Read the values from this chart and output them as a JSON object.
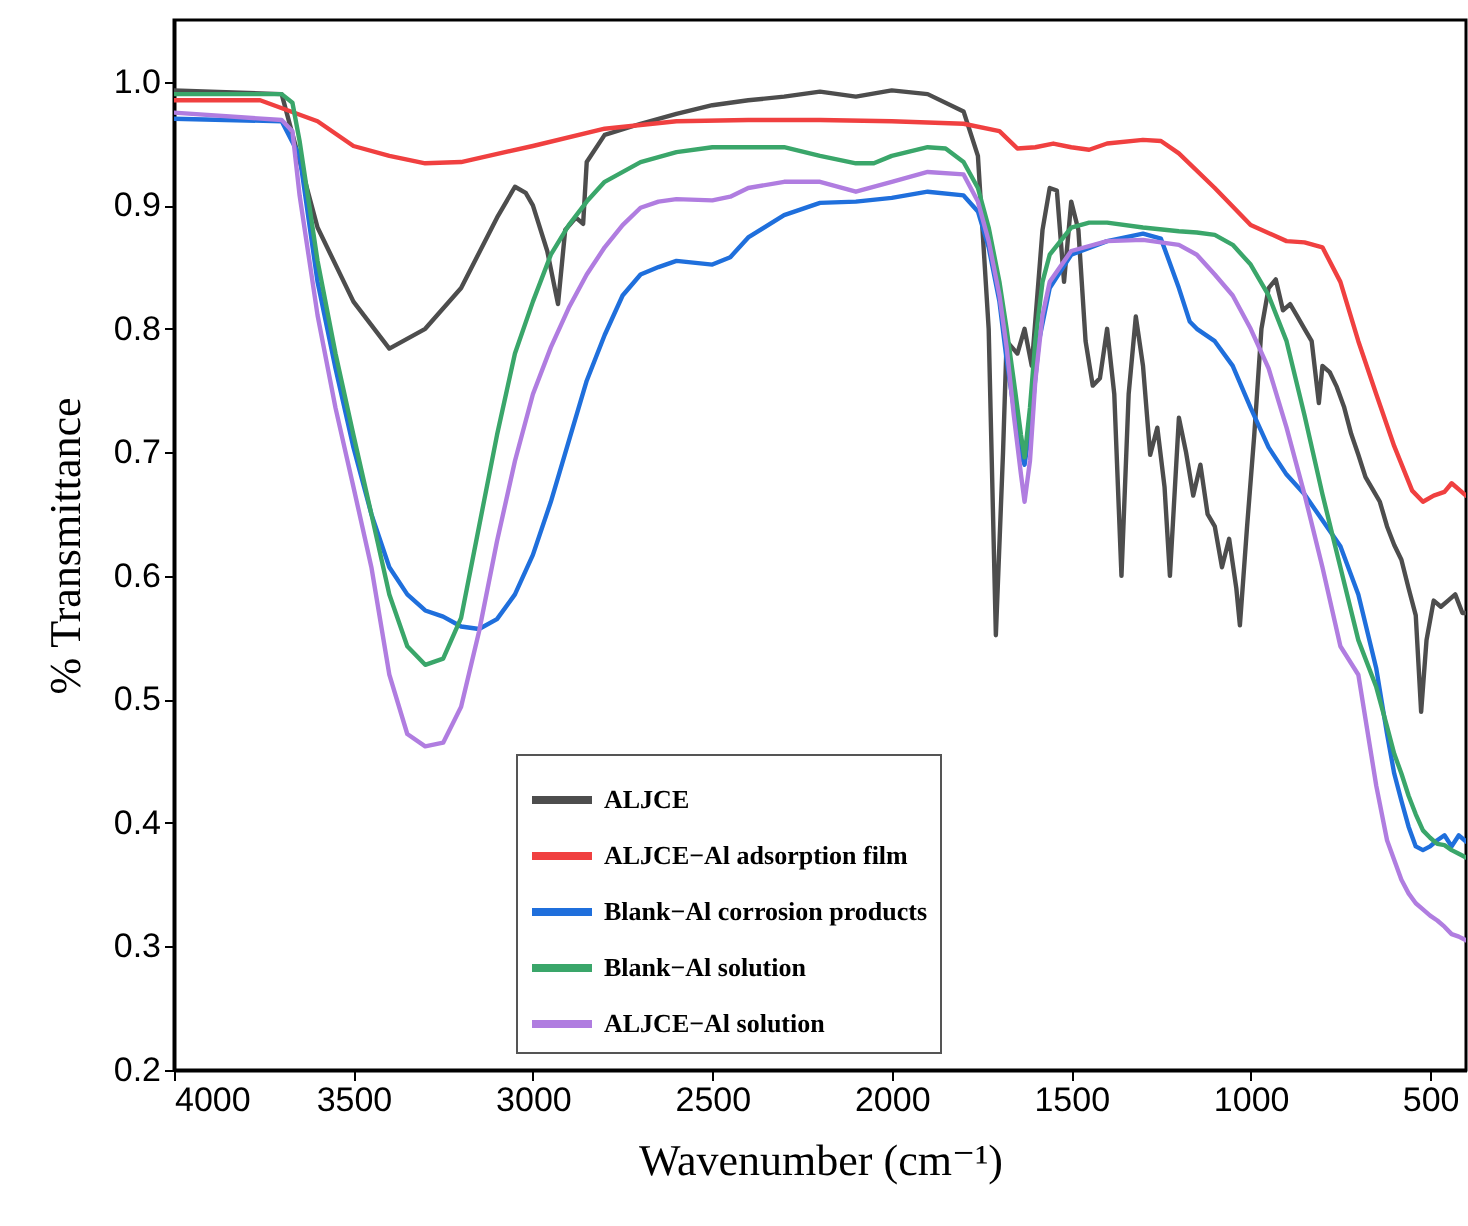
{
  "chart_data": {
    "type": "line",
    "xlabel": "Wavenumber (cm⁻¹)",
    "ylabel": "% Transmittance",
    "xlim": [
      4000,
      400
    ],
    "xticks": [
      4000,
      3500,
      3000,
      2500,
      2000,
      1500,
      1000,
      500
    ],
    "ylim": [
      0.2,
      1.05
    ],
    "yticks": [
      {
        "value": 0.2,
        "label": "0.2"
      },
      {
        "value": 0.3,
        "label": "0.3"
      },
      {
        "value": 0.4,
        "label": "0.4"
      },
      {
        "value": 0.5,
        "label": "0.5"
      },
      {
        "value": 0.6,
        "label": "0.6"
      },
      {
        "value": 0.7,
        "label": "0.7"
      },
      {
        "value": 0.8,
        "label": "0.8"
      },
      {
        "value": 0.9,
        "label": "0.9"
      },
      {
        "value": 1,
        "label": "1.0"
      }
    ],
    "grid": false,
    "legend": "bottom",
    "line_style": "solid",
    "series": [
      {
        "name": "ALJCE",
        "color": "#4d4d4d",
        "x": [
          4000,
          3700,
          3600,
          3500,
          3400,
          3300,
          3200,
          3100,
          3050,
          3020,
          3000,
          2960,
          2930,
          2910,
          2880,
          2860,
          2850,
          2800,
          2700,
          2600,
          2500,
          2400,
          2300,
          2200,
          2100,
          2000,
          1900,
          1800,
          1760,
          1730,
          1710,
          1690,
          1680,
          1650,
          1630,
          1610,
          1580,
          1560,
          1540,
          1520,
          1500,
          1480,
          1460,
          1440,
          1420,
          1400,
          1380,
          1360,
          1340,
          1320,
          1300,
          1280,
          1260,
          1240,
          1225,
          1200,
          1180,
          1160,
          1140,
          1120,
          1100,
          1080,
          1060,
          1040,
          1030,
          1010,
          990,
          970,
          950,
          930,
          910,
          890,
          870,
          850,
          830,
          810,
          800,
          780,
          760,
          740,
          720,
          700,
          680,
          660,
          640,
          620,
          600,
          580,
          560,
          540,
          525,
          510,
          490,
          470,
          450,
          430,
          410,
          400
        ],
        "values": [
          0.993,
          0.99,
          0.882,
          0.822,
          0.784,
          0.8,
          0.833,
          0.89,
          0.915,
          0.91,
          0.9,
          0.863,
          0.82,
          0.88,
          0.89,
          0.885,
          0.935,
          0.957,
          0.966,
          0.974,
          0.981,
          0.985,
          0.988,
          0.992,
          0.988,
          0.993,
          0.99,
          0.976,
          0.94,
          0.8,
          0.552,
          0.7,
          0.79,
          0.78,
          0.8,
          0.77,
          0.88,
          0.914,
          0.912,
          0.838,
          0.903,
          0.88,
          0.79,
          0.754,
          0.76,
          0.8,
          0.747,
          0.6,
          0.747,
          0.81,
          0.77,
          0.698,
          0.72,
          0.672,
          0.6,
          0.728,
          0.7,
          0.665,
          0.69,
          0.65,
          0.64,
          0.607,
          0.63,
          0.59,
          0.56,
          0.64,
          0.714,
          0.8,
          0.833,
          0.84,
          0.815,
          0.82,
          0.81,
          0.8,
          0.79,
          0.74,
          0.77,
          0.765,
          0.753,
          0.737,
          0.715,
          0.698,
          0.68,
          0.67,
          0.66,
          0.64,
          0.625,
          0.613,
          0.59,
          0.568,
          0.49,
          0.548,
          0.58,
          0.575,
          0.58,
          0.585,
          0.57,
          0.57
        ]
      },
      {
        "name": "ALJCE−Al adsorption film",
        "color": "#f04040",
        "x": [
          4000,
          3760,
          3600,
          3500,
          3400,
          3300,
          3200,
          3000,
          2800,
          2600,
          2400,
          2200,
          2000,
          1800,
          1700,
          1650,
          1600,
          1550,
          1500,
          1450,
          1400,
          1300,
          1250,
          1200,
          1100,
          1000,
          900,
          850,
          800,
          750,
          700,
          650,
          600,
          550,
          520,
          490,
          460,
          440,
          420,
          400
        ],
        "values": [
          0.985,
          0.985,
          0.968,
          0.948,
          0.94,
          0.934,
          0.935,
          0.948,
          0.962,
          0.968,
          0.969,
          0.969,
          0.968,
          0.966,
          0.96,
          0.946,
          0.947,
          0.95,
          0.947,
          0.945,
          0.95,
          0.953,
          0.952,
          0.942,
          0.914,
          0.884,
          0.871,
          0.87,
          0.866,
          0.838,
          0.79,
          0.747,
          0.705,
          0.669,
          0.66,
          0.665,
          0.668,
          0.675,
          0.67,
          0.665
        ]
      },
      {
        "name": "Blank−Al corrosion products",
        "color": "#1f6fdc",
        "x": [
          4000,
          3700,
          3650,
          3600,
          3550,
          3500,
          3450,
          3400,
          3350,
          3300,
          3250,
          3200,
          3150,
          3100,
          3050,
          3000,
          2950,
          2900,
          2850,
          2800,
          2750,
          2700,
          2650,
          2600,
          2500,
          2450,
          2400,
          2300,
          2200,
          2100,
          2000,
          1900,
          1800,
          1760,
          1730,
          1700,
          1680,
          1660,
          1640,
          1630,
          1610,
          1590,
          1560,
          1500,
          1400,
          1300,
          1250,
          1200,
          1170,
          1150,
          1100,
          1050,
          1000,
          950,
          900,
          850,
          800,
          750,
          700,
          650,
          620,
          600,
          580,
          560,
          540,
          520,
          500,
          480,
          460,
          440,
          420,
          400
        ],
        "values": [
          0.97,
          0.968,
          0.94,
          0.838,
          0.768,
          0.704,
          0.65,
          0.607,
          0.585,
          0.572,
          0.567,
          0.559,
          0.557,
          0.565,
          0.585,
          0.617,
          0.66,
          0.709,
          0.758,
          0.795,
          0.827,
          0.844,
          0.85,
          0.855,
          0.852,
          0.858,
          0.874,
          0.892,
          0.902,
          0.903,
          0.906,
          0.911,
          0.908,
          0.895,
          0.866,
          0.822,
          0.775,
          0.736,
          0.698,
          0.69,
          0.73,
          0.79,
          0.833,
          0.86,
          0.871,
          0.877,
          0.873,
          0.833,
          0.806,
          0.8,
          0.79,
          0.77,
          0.736,
          0.704,
          0.682,
          0.666,
          0.645,
          0.624,
          0.585,
          0.525,
          0.472,
          0.44,
          0.418,
          0.397,
          0.381,
          0.378,
          0.381,
          0.386,
          0.39,
          0.381,
          0.39,
          0.385
        ]
      },
      {
        "name": "Blank−Al solution",
        "color": "#3aa66a",
        "x": [
          4000,
          3700,
          3670,
          3650,
          3600,
          3550,
          3500,
          3450,
          3400,
          3350,
          3300,
          3250,
          3200,
          3150,
          3100,
          3050,
          3000,
          2950,
          2900,
          2850,
          2800,
          2700,
          2600,
          2500,
          2400,
          2300,
          2200,
          2100,
          2050,
          2000,
          1900,
          1850,
          1800,
          1760,
          1730,
          1700,
          1680,
          1660,
          1640,
          1630,
          1615,
          1600,
          1580,
          1560,
          1500,
          1450,
          1400,
          1300,
          1200,
          1150,
          1100,
          1050,
          1000,
          950,
          900,
          850,
          800,
          750,
          700,
          650,
          620,
          600,
          580,
          560,
          540,
          520,
          500,
          480,
          460,
          440,
          420,
          400
        ],
        "values": [
          0.99,
          0.99,
          0.983,
          0.952,
          0.855,
          0.78,
          0.714,
          0.65,
          0.585,
          0.543,
          0.528,
          0.533,
          0.566,
          0.64,
          0.714,
          0.78,
          0.822,
          0.86,
          0.884,
          0.903,
          0.919,
          0.935,
          0.943,
          0.947,
          0.947,
          0.947,
          0.94,
          0.934,
          0.934,
          0.94,
          0.947,
          0.946,
          0.935,
          0.914,
          0.882,
          0.838,
          0.8,
          0.758,
          0.714,
          0.696,
          0.736,
          0.79,
          0.838,
          0.86,
          0.882,
          0.886,
          0.886,
          0.882,
          0.879,
          0.878,
          0.876,
          0.868,
          0.852,
          0.827,
          0.79,
          0.73,
          0.666,
          0.607,
          0.548,
          0.51,
          0.478,
          0.456,
          0.44,
          0.422,
          0.407,
          0.394,
          0.388,
          0.383,
          0.382,
          0.378,
          0.375,
          0.372
        ]
      },
      {
        "name": "ALJCE−Al solution",
        "color": "#b07de0",
        "x": [
          4000,
          3700,
          3670,
          3650,
          3600,
          3550,
          3500,
          3450,
          3400,
          3350,
          3300,
          3250,
          3200,
          3150,
          3100,
          3050,
          3000,
          2950,
          2900,
          2850,
          2800,
          2750,
          2700,
          2650,
          2600,
          2500,
          2450,
          2400,
          2300,
          2200,
          2100,
          2000,
          1900,
          1800,
          1760,
          1730,
          1700,
          1680,
          1660,
          1640,
          1630,
          1615,
          1600,
          1580,
          1560,
          1500,
          1400,
          1300,
          1200,
          1150,
          1100,
          1050,
          1000,
          950,
          900,
          850,
          800,
          750,
          700,
          650,
          620,
          600,
          580,
          560,
          540,
          520,
          500,
          480,
          460,
          440,
          420,
          400
        ],
        "values": [
          0.975,
          0.969,
          0.96,
          0.908,
          0.811,
          0.736,
          0.672,
          0.607,
          0.52,
          0.472,
          0.462,
          0.465,
          0.494,
          0.555,
          0.628,
          0.693,
          0.747,
          0.785,
          0.817,
          0.844,
          0.866,
          0.884,
          0.898,
          0.903,
          0.905,
          0.904,
          0.907,
          0.914,
          0.919,
          0.919,
          0.911,
          0.919,
          0.927,
          0.925,
          0.903,
          0.871,
          0.827,
          0.785,
          0.73,
          0.682,
          0.66,
          0.693,
          0.758,
          0.811,
          0.838,
          0.863,
          0.871,
          0.872,
          0.868,
          0.86,
          0.844,
          0.827,
          0.8,
          0.768,
          0.72,
          0.666,
          0.607,
          0.543,
          0.52,
          0.43,
          0.386,
          0.37,
          0.354,
          0.343,
          0.335,
          0.33,
          0.325,
          0.321,
          0.316,
          0.31,
          0.308,
          0.305
        ]
      }
    ]
  }
}
